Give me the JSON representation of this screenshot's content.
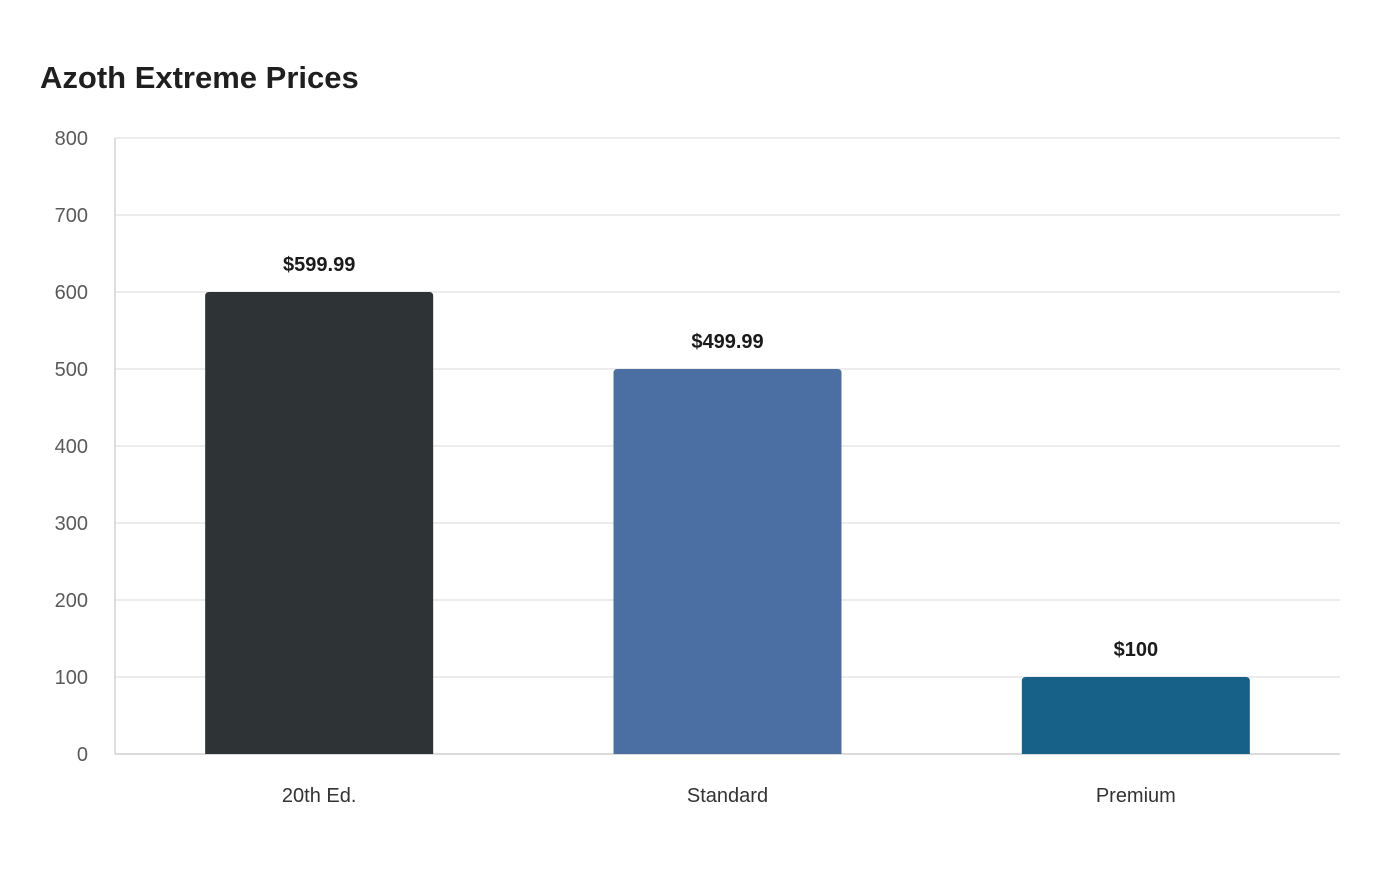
{
  "chart_data": {
    "type": "bar",
    "title": "Azoth Extreme Prices",
    "xlabel": "",
    "ylabel": "",
    "categories": [
      "20th Ed.",
      "Standard",
      "Premium"
    ],
    "values": [
      599.99,
      499.99,
      100
    ],
    "data_labels": [
      "$599.99",
      "$499.99",
      "$100"
    ],
    "colors": [
      "#2e3436",
      "#4c6fa3",
      "#176088"
    ],
    "ylim": [
      0,
      800
    ],
    "yticks": [
      "0",
      "100",
      "200",
      "300",
      "400",
      "500",
      "600",
      "700",
      "800"
    ],
    "grid": true,
    "legend": "none"
  }
}
